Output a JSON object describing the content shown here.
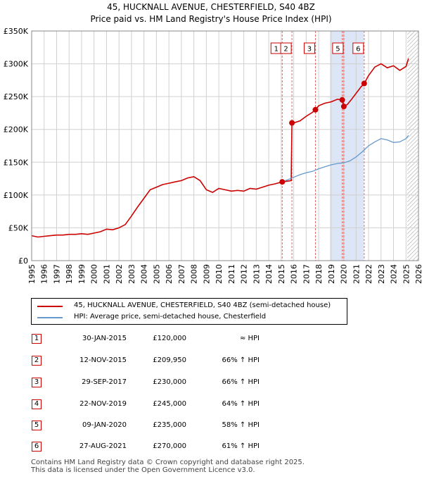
{
  "chart_data": {
    "type": "line",
    "title": "45, HUCKNALL AVENUE, CHESTERFIELD, S40 4BZ",
    "subtitle": "Price paid vs. HM Land Registry's House Price Index (HPI)",
    "xlim": [
      1995,
      2026
    ],
    "ylim": [
      0,
      350000
    ],
    "x_ticks": [
      1995,
      1996,
      1997,
      1998,
      1999,
      2000,
      2001,
      2002,
      2003,
      2004,
      2005,
      2006,
      2007,
      2008,
      2009,
      2010,
      2011,
      2012,
      2013,
      2014,
      2015,
      2016,
      2017,
      2018,
      2019,
      2020,
      2021,
      2022,
      2023,
      2024,
      2025,
      2026
    ],
    "y_ticks": [
      {
        "value": 0,
        "label": "£0"
      },
      {
        "value": 50000,
        "label": "£50K"
      },
      {
        "value": 100000,
        "label": "£100K"
      },
      {
        "value": 150000,
        "label": "£150K"
      },
      {
        "value": 200000,
        "label": "£200K"
      },
      {
        "value": 250000,
        "label": "£250K"
      },
      {
        "value": 300000,
        "label": "£300K"
      },
      {
        "value": 350000,
        "label": "£350K"
      }
    ],
    "colors": {
      "property": "#cc0000",
      "hpi": "#6699cc",
      "shade": "#dde6f7",
      "marker_line": "#e06666",
      "grid": "#d0d0d0",
      "plot_bg": "#ffffff",
      "hatch": "#999999"
    },
    "shade_range": [
      2018.9,
      2021.6
    ],
    "future_start": 2025.1,
    "series": [
      {
        "name": "45, HUCKNALL AVENUE, CHESTERFIELD, S40 4BZ (semi-detached house)",
        "key": "property",
        "x": [
          1995.0,
          1995.5,
          1996.0,
          1996.5,
          1997.0,
          1997.5,
          1998.0,
          1998.5,
          1999.0,
          1999.5,
          2000.0,
          2000.5,
          2001.0,
          2001.5,
          2002.0,
          2002.5,
          2003.0,
          2003.5,
          2004.0,
          2004.5,
          2005.0,
          2005.5,
          2006.0,
          2006.5,
          2007.0,
          2007.5,
          2008.0,
          2008.5,
          2009.0,
          2009.5,
          2010.0,
          2010.5,
          2011.0,
          2011.5,
          2012.0,
          2012.5,
          2013.0,
          2013.5,
          2014.0,
          2014.5,
          2015.08,
          2015.8,
          2015.86,
          2016.0,
          2016.5,
          2017.0,
          2017.5,
          2017.74,
          2018.0,
          2018.5,
          2019.0,
          2019.5,
          2019.89,
          2020.02,
          2020.3,
          2020.6,
          2021.0,
          2021.4,
          2021.65,
          2022.0,
          2022.5,
          2023.0,
          2023.5,
          2024.0,
          2024.5,
          2025.0,
          2025.2
        ],
        "y": [
          38000,
          36000,
          37000,
          38000,
          39000,
          39000,
          40000,
          40000,
          41000,
          40000,
          42000,
          44000,
          48000,
          47000,
          50000,
          55000,
          68000,
          82000,
          95000,
          108000,
          112000,
          116000,
          118000,
          120000,
          122000,
          126000,
          128000,
          122000,
          108000,
          104000,
          110000,
          108000,
          106000,
          107000,
          106000,
          110000,
          109000,
          112000,
          115000,
          117000,
          120000,
          122000,
          209950,
          210000,
          213000,
          220000,
          226000,
          230000,
          236000,
          240000,
          242000,
          246000,
          245000,
          235000,
          238000,
          245000,
          255000,
          265000,
          270000,
          282000,
          295000,
          300000,
          294000,
          297000,
          290000,
          296000,
          308000
        ]
      },
      {
        "name": "HPI: Average price, semi-detached house, Chesterfield",
        "key": "hpi",
        "x": [
          2015.0,
          2015.5,
          2016.0,
          2016.5,
          2017.0,
          2017.5,
          2018.0,
          2018.5,
          2019.0,
          2019.5,
          2020.0,
          2020.5,
          2021.0,
          2021.5,
          2022.0,
          2022.5,
          2023.0,
          2023.5,
          2024.0,
          2024.5,
          2025.0,
          2025.2
        ],
        "y": [
          120000,
          123000,
          127000,
          131000,
          134000,
          136000,
          140000,
          143000,
          146000,
          148000,
          149000,
          152000,
          158000,
          166000,
          175000,
          181000,
          186000,
          184000,
          180000,
          181000,
          186000,
          191000
        ]
      }
    ],
    "sales": [
      {
        "label": "1",
        "date": "30-JAN-2015",
        "x": 2015.08,
        "price": "£120,000",
        "value": 120000,
        "relation": "≈ HPI"
      },
      {
        "label": "2",
        "date": "12-NOV-2015",
        "x": 2015.86,
        "price": "£209,950",
        "value": 209950,
        "relation": "66% ↑ HPI"
      },
      {
        "label": "3",
        "date": "29-SEP-2017",
        "x": 2017.74,
        "price": "£230,000",
        "value": 230000,
        "relation": "66% ↑ HPI"
      },
      {
        "label": "4",
        "date": "22-NOV-2019",
        "x": 2019.89,
        "price": "£245,000",
        "value": 245000,
        "relation": "64% ↑ HPI"
      },
      {
        "label": "5",
        "date": "09-JAN-2020",
        "x": 2020.02,
        "price": "£235,000",
        "value": 235000,
        "relation": "58% ↑ HPI"
      },
      {
        "label": "6",
        "date": "27-AUG-2021",
        "x": 2021.65,
        "price": "£270,000",
        "value": 270000,
        "relation": "61% ↑ HPI"
      }
    ],
    "chart_labels": [
      "1",
      "2",
      "3",
      "5",
      "6"
    ]
  },
  "legend": {
    "property": "45, HUCKNALL AVENUE, CHESTERFIELD, S40 4BZ (semi-detached house)",
    "hpi": "HPI: Average price, semi-detached house, Chesterfield"
  },
  "footer": {
    "line1": "Contains HM Land Registry data © Crown copyright and database right 2025.",
    "line2": "This data is licensed under the Open Government Licence v3.0."
  }
}
